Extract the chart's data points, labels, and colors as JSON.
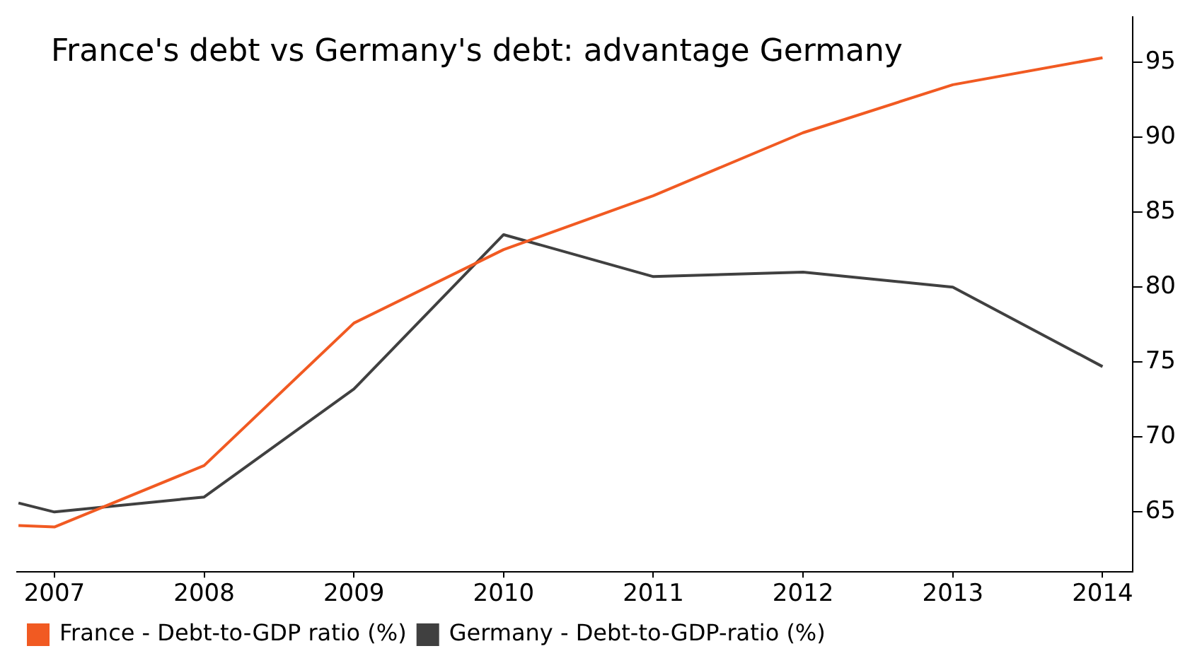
{
  "chart_data": {
    "type": "line",
    "title": "France's debt vs Germany's debt: advantage Germany",
    "xlim": [
      2006.75,
      2014.2
    ],
    "xticks": [
      2007,
      2008,
      2009,
      2010,
      2011,
      2012,
      2013,
      2014
    ],
    "ylim": [
      61,
      98
    ],
    "yticks": [
      65,
      70,
      75,
      80,
      85,
      90,
      95
    ],
    "x": [
      2006.76,
      2007,
      2008,
      2009,
      2010,
      2011,
      2012,
      2013,
      2014
    ],
    "series": [
      {
        "name": "France - Debt-to-GDP ratio (%)",
        "color": "#f15a22",
        "values": [
          64.1,
          64.0,
          68.1,
          77.6,
          82.5,
          86.1,
          90.3,
          93.5,
          95.3
        ]
      },
      {
        "name": "Germany - Debt-to-GDP-ratio (%)",
        "color": "#404040",
        "values": [
          65.6,
          65.0,
          66.0,
          73.2,
          83.5,
          80.7,
          81.0,
          80.0,
          74.7
        ]
      }
    ],
    "grid": false,
    "legend": "bottom left",
    "marker": "none",
    "line_style": "solid"
  }
}
